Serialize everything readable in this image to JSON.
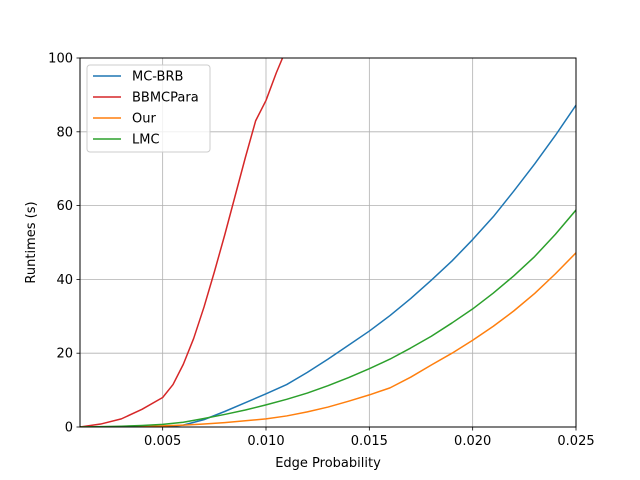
{
  "chart_data": {
    "type": "line",
    "xlabel": "Edge Probability",
    "ylabel": "Runtimes (s)",
    "xlim": [
      0.001,
      0.025
    ],
    "ylim": [
      0,
      100
    ],
    "xticks": [
      0.005,
      0.01,
      0.015,
      0.02,
      0.025
    ],
    "xtick_labels": [
      "0.005",
      "0.010",
      "0.015",
      "0.020",
      "0.025"
    ],
    "yticks": [
      0,
      20,
      40,
      60,
      80,
      100
    ],
    "ytick_labels": [
      "0",
      "20",
      "40",
      "60",
      "80",
      "100"
    ],
    "grid": true,
    "legend_position": "top-left",
    "series": [
      {
        "name": "MC-BRB",
        "color": "#1f77b4",
        "x": [
          0.001,
          0.005,
          0.006,
          0.007,
          0.008,
          0.009,
          0.01,
          0.011,
          0.012,
          0.013,
          0.014,
          0.015,
          0.016,
          0.017,
          0.018,
          0.019,
          0.02,
          0.021,
          0.022,
          0.023,
          0.024,
          0.025
        ],
        "y": [
          0,
          0,
          0.5,
          2,
          4.2,
          6.6,
          9,
          11.5,
          14.8,
          18.4,
          22.2,
          26,
          30.2,
          34.8,
          39.8,
          45,
          50.8,
          57,
          64,
          71.3,
          79,
          87.2
        ]
      },
      {
        "name": "BBMCPara",
        "color": "#d62728",
        "x": [
          0.001,
          0.002,
          0.003,
          0.004,
          0.005,
          0.0055,
          0.006,
          0.0065,
          0.007,
          0.0075,
          0.008,
          0.0085,
          0.009,
          0.0095,
          0.01,
          0.0105,
          0.0108
        ],
        "y": [
          0,
          0.8,
          2.2,
          4.8,
          8,
          11.5,
          17,
          24,
          32.5,
          42,
          52,
          62.5,
          73,
          83,
          88.5,
          96,
          100
        ]
      },
      {
        "name": "Our",
        "color": "#ff7f0e",
        "x": [
          0.001,
          0.004,
          0.005,
          0.006,
          0.007,
          0.008,
          0.009,
          0.01,
          0.011,
          0.012,
          0.013,
          0.014,
          0.015,
          0.016,
          0.017,
          0.018,
          0.019,
          0.02,
          0.021,
          0.022,
          0.023,
          0.024,
          0.025
        ],
        "y": [
          0,
          0.1,
          0.3,
          0.5,
          0.8,
          1.2,
          1.7,
          2.2,
          3,
          4.1,
          5.4,
          7,
          8.7,
          10.6,
          13.5,
          16.8,
          20,
          23.5,
          27.3,
          31.5,
          36.2,
          41.5,
          47.2
        ]
      },
      {
        "name": "LMC",
        "color": "#2ca02c",
        "x": [
          0.001,
          0.002,
          0.003,
          0.004,
          0.005,
          0.006,
          0.007,
          0.008,
          0.009,
          0.01,
          0.011,
          0.012,
          0.013,
          0.014,
          0.015,
          0.016,
          0.017,
          0.018,
          0.019,
          0.02,
          0.021,
          0.022,
          0.023,
          0.024,
          0.025
        ],
        "y": [
          0,
          0.1,
          0.2,
          0.4,
          0.7,
          1.3,
          2.3,
          3.4,
          4.6,
          6,
          7.5,
          9.2,
          11.2,
          13.4,
          15.8,
          18.4,
          21.4,
          24.6,
          28.2,
          32,
          36.3,
          41,
          46.2,
          52.2,
          58.8
        ]
      }
    ]
  }
}
